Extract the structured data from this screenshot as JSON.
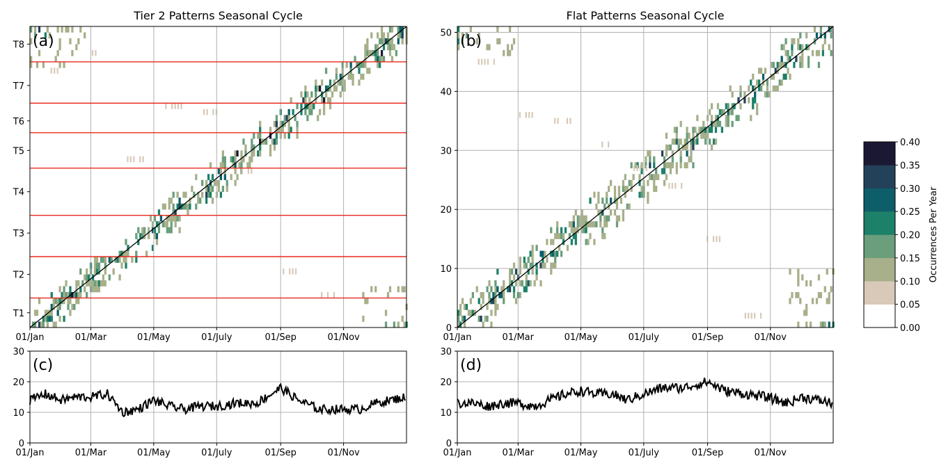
{
  "x_ticks": [
    "01/Jan",
    "01/Mar",
    "01/May",
    "01/July",
    "01/Sep",
    "01/Nov"
  ],
  "colorbar": {
    "label": "Occurrences Per Year",
    "ticks": [
      "0.00",
      "0.05",
      "0.10",
      "0.15",
      "0.20",
      "0.25",
      "0.30",
      "0.35",
      "0.40"
    ],
    "bins": [
      0,
      0.05,
      0.1,
      0.15,
      0.2,
      0.25,
      0.3,
      0.35,
      0.4
    ],
    "colors": [
      "#ffffff",
      "#d8c9b8",
      "#a7b08a",
      "#6a9e7c",
      "#1d8069",
      "#0d5e68",
      "#24415a",
      "#1b1833"
    ]
  },
  "chart_data": [
    {
      "id": "a",
      "type": "heatmap",
      "title": "Tier 2 Patterns Seasonal Cycle",
      "panel_label": "(a)",
      "x_domain_days": [
        0,
        365
      ],
      "x_tick_days": [
        0,
        59,
        120,
        181,
        243,
        304
      ],
      "y_range": [
        0.5,
        51.5
      ],
      "y_tick_labels": [
        "T1",
        "T2",
        "T3",
        "T4",
        "T5",
        "T6",
        "T7",
        "T8"
      ],
      "y_tick_values": [
        3,
        9.5,
        16.5,
        23.5,
        30.5,
        35.5,
        41.5,
        48.5
      ],
      "group_boundaries": [
        5.5,
        12.5,
        19.5,
        27.5,
        33.5,
        38.5,
        45.5
      ],
      "boundary_color": "#e8291c",
      "diagonal": true,
      "band": {
        "center_start": 0.5,
        "center_end": 51.5,
        "half_width_days": 26,
        "density": 0.5,
        "y_wrap_low": 8,
        "y_wrap_high": 44
      },
      "scattered_patterns": [
        44,
        47,
        29,
        38,
        37,
        27,
        10,
        6
      ]
    },
    {
      "id": "b",
      "type": "heatmap",
      "title": "Flat Patterns Seasonal Cycle",
      "panel_label": "(b)",
      "x_domain_days": [
        0,
        365
      ],
      "x_tick_days": [
        0,
        59,
        120,
        181,
        243,
        304
      ],
      "y_range": [
        0,
        51
      ],
      "y_ticks": [
        0,
        10,
        20,
        30,
        40,
        50
      ],
      "diagonal": true,
      "band": {
        "center_start": 0,
        "center_end": 51,
        "half_width_days": 32,
        "density": 0.45,
        "y_wrap_low": 10,
        "y_wrap_high": 46
      },
      "scattered_patterns": [
        45,
        36,
        35,
        31,
        27,
        24,
        15,
        2
      ]
    },
    {
      "id": "c",
      "type": "line",
      "panel_label": "(c)",
      "x_domain_days": [
        0,
        365
      ],
      "x_tick_days": [
        0,
        59,
        120,
        181,
        243,
        304
      ],
      "ylim": [
        0,
        30
      ],
      "y_ticks": [
        0,
        10,
        20,
        30
      ],
      "keypoints_x": [
        0,
        15,
        30,
        45,
        59,
        75,
        90,
        105,
        120,
        135,
        150,
        165,
        181,
        200,
        220,
        243,
        260,
        280,
        300,
        320,
        335,
        350,
        364
      ],
      "keypoints_y": [
        14,
        16,
        14,
        15,
        15,
        16,
        10,
        11,
        14,
        12,
        11,
        12,
        12,
        13,
        13,
        18,
        14,
        11,
        11,
        11,
        13,
        14,
        15
      ],
      "noise_amplitude": 1.5
    },
    {
      "id": "d",
      "type": "line",
      "panel_label": "(d)",
      "x_domain_days": [
        0,
        365
      ],
      "x_tick_days": [
        0,
        59,
        120,
        181,
        243,
        304
      ],
      "ylim": [
        0,
        30
      ],
      "y_ticks": [
        0,
        10,
        20,
        30
      ],
      "keypoints_x": [
        0,
        15,
        30,
        45,
        59,
        75,
        90,
        105,
        120,
        135,
        150,
        165,
        181,
        200,
        220,
        243,
        260,
        280,
        300,
        320,
        335,
        350,
        364
      ],
      "keypoints_y": [
        13,
        13,
        12,
        13,
        13,
        12,
        14,
        16,
        17,
        16,
        16,
        14,
        16,
        18,
        18,
        20,
        17,
        16,
        15,
        13,
        15,
        14,
        13
      ],
      "noise_amplitude": 1.6
    }
  ]
}
